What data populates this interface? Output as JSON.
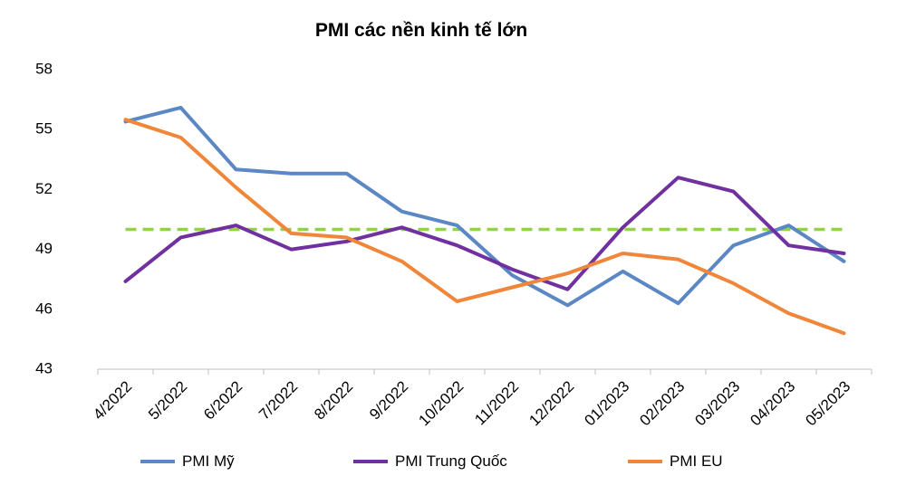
{
  "chart_data": {
    "type": "line",
    "title": "PMI các nền kinh tế lớn",
    "categories": [
      "4/2022",
      "5/2022",
      "6/2022",
      "7/2022",
      "8/2022",
      "9/2022",
      "10/2022",
      "11/2022",
      "12/2022",
      "01/2023",
      "02/2023",
      "03/2023",
      "04/2023",
      "05/2023"
    ],
    "yticks": [
      43,
      46,
      49,
      52,
      55,
      58
    ],
    "ylim": [
      43,
      58
    ],
    "reference_line": {
      "value": 50,
      "color": "#92D050",
      "style": "dashed"
    },
    "series": [
      {
        "name": "PMI Mỹ",
        "color": "#5B87C5",
        "values": [
          55.4,
          56.1,
          53.0,
          52.8,
          52.8,
          50.9,
          50.2,
          47.7,
          46.2,
          47.9,
          46.3,
          49.2,
          50.2,
          48.4
        ]
      },
      {
        "name": "PMI Trung Quốc",
        "color": "#7030A0",
        "values": [
          47.4,
          49.6,
          50.2,
          49.0,
          49.4,
          50.1,
          49.2,
          48.0,
          47.0,
          50.1,
          52.6,
          51.9,
          49.2,
          48.8
        ]
      },
      {
        "name": "PMI EU",
        "color": "#F0863A",
        "values": [
          55.5,
          54.6,
          52.1,
          49.8,
          49.6,
          48.4,
          46.4,
          47.1,
          47.8,
          48.8,
          48.5,
          47.3,
          45.8,
          44.8
        ]
      }
    ],
    "legend_position": "bottom",
    "grid": false
  }
}
